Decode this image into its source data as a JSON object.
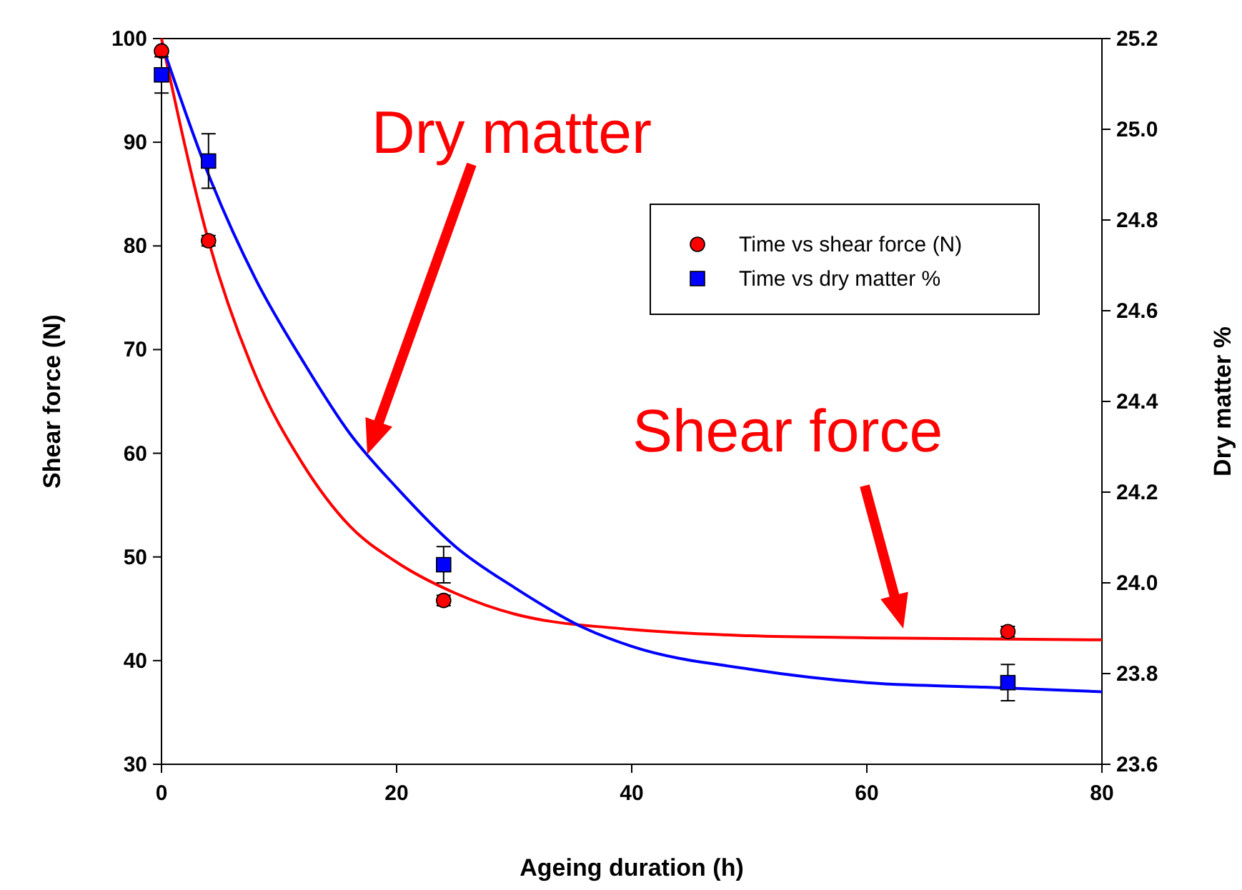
{
  "chart_data": {
    "type": "scatter",
    "xlabel": "Ageing duration (h)",
    "ylabel": "Shear force (N)",
    "y2label": "Dry matter %",
    "xlim": [
      0,
      80
    ],
    "xticks": [
      0,
      20,
      40,
      60,
      80
    ],
    "ylim": [
      30,
      100
    ],
    "yticks": [
      30,
      40,
      50,
      60,
      70,
      80,
      90,
      100
    ],
    "y2lim": [
      23.6,
      25.2
    ],
    "y2ticks": [
      {
        "value": 23.6,
        "label": "23.6"
      },
      {
        "value": 23.8,
        "label": "23.8"
      },
      {
        "value": 24.0,
        "label": "24.0"
      },
      {
        "value": 24.2,
        "label": "24.2"
      },
      {
        "value": 24.4,
        "label": "24.4"
      },
      {
        "value": 24.6,
        "label": "24.6"
      },
      {
        "value": 24.8,
        "label": "24.8"
      },
      {
        "value": 25.0,
        "label": "25.0"
      },
      {
        "value": 25.2,
        "label": "25.2"
      }
    ],
    "grid": false,
    "legend": "top right",
    "annotations": [
      "Dry matter",
      "Shear force"
    ],
    "series": [
      {
        "name": "Time vs shear force (N)",
        "color": "#ff0000",
        "marker": "circle",
        "x": [
          0,
          4,
          24,
          72
        ],
        "values": [
          98.8,
          80.5,
          45.8,
          42.8
        ],
        "errors": [
          null,
          0.5,
          0.5,
          0.5
        ]
      },
      {
        "name": "Time vs dry matter %",
        "color": "#0000ff",
        "marker": "square",
        "axis": "y2",
        "x": [
          0,
          4,
          24,
          72
        ],
        "values": [
          25.12,
          24.93,
          24.04,
          23.78
        ],
        "errors": [
          0.04,
          0.06,
          0.04,
          0.04
        ]
      },
      {
        "type": "line",
        "color": "#ff0000",
        "marker": "none",
        "x": [
          0,
          4,
          8,
          12,
          16,
          20,
          25,
          30,
          40,
          50,
          60,
          80
        ],
        "values": [
          100,
          80.5,
          67.5,
          59,
          53,
          49.5,
          46.5,
          44.5,
          43,
          42.4,
          42.2,
          42.0
        ]
      },
      {
        "type": "line",
        "color": "#0000ff",
        "marker": "none",
        "axis": "y2",
        "x": [
          0,
          4,
          8,
          12,
          16,
          20,
          25,
          30,
          36,
          40,
          50,
          60,
          70,
          80
        ],
        "values": [
          25.19,
          24.9,
          24.67,
          24.49,
          24.33,
          24.21,
          24.08,
          23.99,
          23.9,
          23.86,
          23.81,
          23.78,
          23.77,
          23.76
        ]
      }
    ]
  }
}
